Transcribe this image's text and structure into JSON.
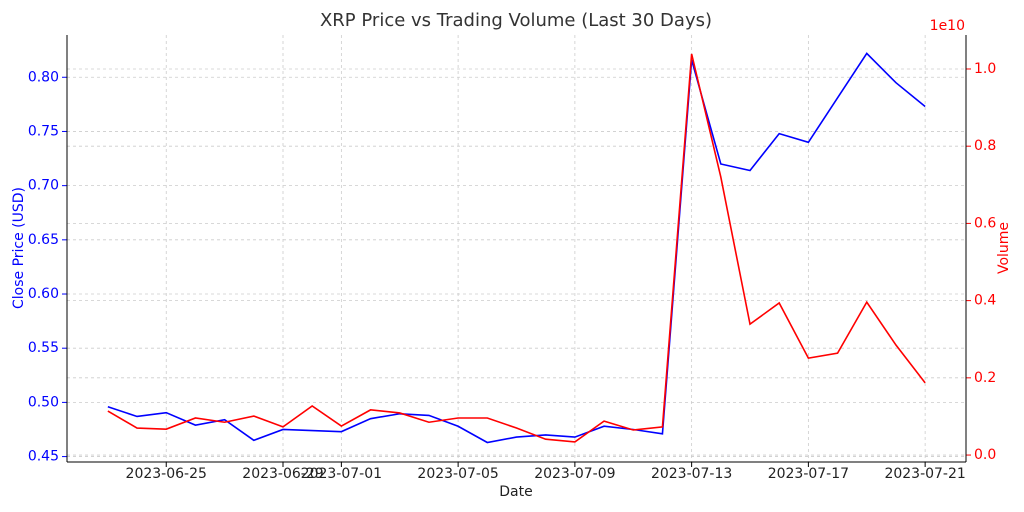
{
  "chart_data": {
    "type": "line",
    "title": "XRP Price vs Trading Volume (Last 30 Days)",
    "x_label": "Date",
    "y_label": "Close Price (USD)",
    "y2_label": "Volume",
    "y2_offset_label": "1e10",
    "x": [
      "2023-06-23",
      "2023-06-24",
      "2023-06-25",
      "2023-06-26",
      "2023-06-27",
      "2023-06-28",
      "2023-06-29",
      "2023-06-30",
      "2023-07-01",
      "2023-07-02",
      "2023-07-03",
      "2023-07-04",
      "2023-07-05",
      "2023-07-06",
      "2023-07-07",
      "2023-07-08",
      "2023-07-09",
      "2023-07-10",
      "2023-07-11",
      "2023-07-12",
      "2023-07-13",
      "2023-07-14",
      "2023-07-15",
      "2023-07-16",
      "2023-07-17",
      "2023-07-18",
      "2023-07-19",
      "2023-07-20",
      "2023-07-21"
    ],
    "xlim": [
      "2023-06-21T14:24",
      "2023-07-22T09:36"
    ],
    "xticks": [
      "2023-06-25",
      "2023-06-29",
      "2023-07-01",
      "2023-07-05",
      "2023-07-09",
      "2023-07-13",
      "2023-07-17",
      "2023-07-21"
    ],
    "ylim": [
      0.445,
      0.839
    ],
    "yticks": [
      {
        "value": 0.45,
        "label": "0.45"
      },
      {
        "value": 0.5,
        "label": "0.50"
      },
      {
        "value": 0.55,
        "label": "0.55"
      },
      {
        "value": 0.6,
        "label": "0.60"
      },
      {
        "value": 0.65,
        "label": "0.65"
      },
      {
        "value": 0.7,
        "label": "0.70"
      },
      {
        "value": 0.75,
        "label": "0.75"
      },
      {
        "value": 0.8,
        "label": "0.80"
      }
    ],
    "y2lim": [
      -0.018,
      1.088
    ],
    "y2ticks": [
      {
        "value": 0,
        "label": "0.0"
      },
      {
        "value": 0.2,
        "label": "0.2"
      },
      {
        "value": 0.4,
        "label": "0.4"
      },
      {
        "value": 0.6,
        "label": "0.6"
      },
      {
        "value": 0.8,
        "label": "0.8"
      },
      {
        "value": 1,
        "label": "1.0"
      }
    ],
    "grid": true,
    "series": [
      {
        "name": "Close Price (USD)",
        "color": "#0000ff",
        "axis": "y",
        "values": [
          0.496,
          0.487,
          0.4905,
          0.479,
          0.484,
          0.465,
          0.475,
          0.474,
          0.473,
          0.485,
          0.4895,
          0.488,
          0.478,
          0.463,
          0.468,
          0.47,
          0.468,
          0.478,
          0.475,
          0.471,
          0.816,
          0.72,
          0.714,
          0.748,
          0.74,
          0.781,
          0.822,
          0.795,
          0.773
        ]
      },
      {
        "name": "Volume",
        "color": "#ff0000",
        "axis": "y2",
        "values": [
          0.114,
          0.07,
          0.067,
          0.096,
          0.085,
          0.101,
          0.073,
          0.127,
          0.075,
          0.117,
          0.109,
          0.085,
          0.096,
          0.096,
          0.07,
          0.041,
          0.034,
          0.088,
          0.065,
          0.073,
          1.039,
          0.72,
          0.339,
          0.394,
          0.251,
          0.264,
          0.396,
          0.285,
          0.187
        ]
      }
    ]
  }
}
